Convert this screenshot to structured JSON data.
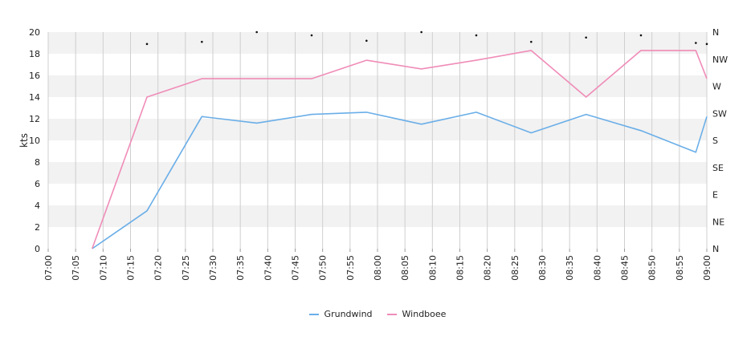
{
  "chart_data": {
    "type": "line",
    "xlabel": "",
    "ylabel": "kts",
    "ylim": [
      0,
      20
    ],
    "yticks": [
      "0",
      "2",
      "4",
      "6",
      "8",
      "10",
      "12",
      "14",
      "16",
      "18",
      "20"
    ],
    "xticks": [
      "07:00",
      "07:05",
      "07:10",
      "07:15",
      "07:20",
      "07:25",
      "07:30",
      "07:35",
      "07:40",
      "07:45",
      "07:50",
      "07:55",
      "08:00",
      "08:05",
      "08:10",
      "08:15",
      "08:20",
      "08:25",
      "08:30",
      "08:35",
      "08:40",
      "08:45",
      "08:50",
      "08:55",
      "09:00"
    ],
    "direction_ticks": [
      "N",
      "NE",
      "E",
      "SE",
      "S",
      "SW",
      "W",
      "NW",
      "N"
    ],
    "series": [
      {
        "name": "Grundwind",
        "color": "#6aaee8",
        "points": [
          [
            "07:08",
            0
          ],
          [
            "07:18",
            3.5
          ],
          [
            "07:28",
            12.2
          ],
          [
            "07:38",
            11.6
          ],
          [
            "07:48",
            12.4
          ],
          [
            "07:58",
            12.6
          ],
          [
            "08:08",
            11.5
          ],
          [
            "08:18",
            12.6
          ],
          [
            "08:28",
            10.7
          ],
          [
            "08:38",
            12.4
          ],
          [
            "08:48",
            10.9
          ],
          [
            "08:58",
            8.9
          ],
          [
            "09:00",
            12.2
          ]
        ]
      },
      {
        "name": "Windboee",
        "color": "#f08cb8",
        "points": [
          [
            "07:08",
            0
          ],
          [
            "07:18",
            14.0
          ],
          [
            "07:28",
            15.7
          ],
          [
            "07:38",
            15.7
          ],
          [
            "07:48",
            15.7
          ],
          [
            "07:58",
            17.4
          ],
          [
            "08:08",
            16.6
          ],
          [
            "08:18",
            17.4
          ],
          [
            "08:28",
            18.3
          ],
          [
            "08:38",
            14.0
          ],
          [
            "08:48",
            18.3
          ],
          [
            "08:58",
            18.3
          ],
          [
            "09:00",
            15.7
          ]
        ]
      }
    ],
    "direction_markers": [
      [
        "07:18",
        18.9
      ],
      [
        "07:28",
        19.1
      ],
      [
        "07:38",
        20.0
      ],
      [
        "07:48",
        19.7
      ],
      [
        "07:58",
        19.2
      ],
      [
        "08:08",
        20.0
      ],
      [
        "08:18",
        19.7
      ],
      [
        "08:28",
        19.1
      ],
      [
        "08:38",
        19.5
      ],
      [
        "08:48",
        19.7
      ],
      [
        "08:58",
        19.0
      ],
      [
        "09:00",
        18.9
      ]
    ],
    "grid": true,
    "legend_position": "bottom"
  }
}
